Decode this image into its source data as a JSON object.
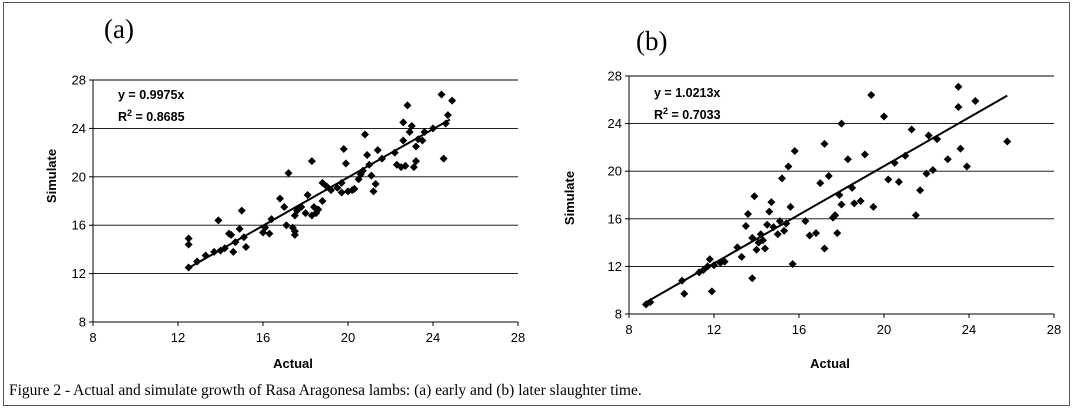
{
  "caption": "Figure 2 - Actual and simulate growth of Rasa Aragonesa lambs: (a) early and (b) later slaughter time.",
  "chart_data": [
    {
      "type": "scatter",
      "panel_label": "(a)",
      "xlabel": "Actual",
      "ylabel": "Simulate",
      "xlim": [
        8,
        28
      ],
      "ylim": [
        8,
        28
      ],
      "xticks": [
        8,
        12,
        16,
        20,
        24,
        28
      ],
      "yticks": [
        8,
        12,
        16,
        20,
        24,
        28
      ],
      "grid": "horizontal",
      "marker": "diamond",
      "equation": "y = 0.9975x",
      "r2_label": "R",
      "r2_sup": "2",
      "r2_value": " = 0.8685",
      "trendline": {
        "slope": 0.9975,
        "x_range": [
          12.5,
          24.8
        ]
      },
      "points": [
        [
          12.5,
          12.5
        ],
        [
          12.5,
          14.9
        ],
        [
          12.5,
          14.4
        ],
        [
          12.9,
          13.0
        ],
        [
          13.3,
          13.5
        ],
        [
          13.7,
          13.8
        ],
        [
          13.9,
          16.4
        ],
        [
          14.0,
          13.9
        ],
        [
          14.2,
          14.1
        ],
        [
          14.4,
          15.3
        ],
        [
          14.5,
          15.2
        ],
        [
          14.6,
          13.8
        ],
        [
          14.7,
          14.6
        ],
        [
          14.9,
          15.7
        ],
        [
          15.0,
          17.2
        ],
        [
          15.1,
          15.0
        ],
        [
          15.2,
          14.2
        ],
        [
          16.0,
          15.4
        ],
        [
          16.1,
          15.8
        ],
        [
          16.3,
          15.3
        ],
        [
          16.4,
          16.5
        ],
        [
          16.8,
          18.2
        ],
        [
          17.0,
          17.5
        ],
        [
          17.1,
          16.0
        ],
        [
          17.2,
          20.3
        ],
        [
          17.4,
          15.8
        ],
        [
          17.5,
          15.5
        ],
        [
          17.5,
          15.2
        ],
        [
          17.5,
          16.8
        ],
        [
          17.6,
          17.2
        ],
        [
          17.8,
          17.5
        ],
        [
          18.0,
          17.0
        ],
        [
          18.1,
          18.5
        ],
        [
          18.3,
          21.3
        ],
        [
          18.3,
          16.8
        ],
        [
          18.4,
          17.5
        ],
        [
          18.5,
          17.0
        ],
        [
          18.6,
          17.3
        ],
        [
          18.8,
          18.0
        ],
        [
          18.8,
          19.5
        ],
        [
          19.0,
          19.2
        ],
        [
          19.2,
          18.9
        ],
        [
          19.5,
          19.1
        ],
        [
          19.7,
          18.7
        ],
        [
          19.7,
          19.5
        ],
        [
          19.8,
          22.3
        ],
        [
          19.9,
          21.1
        ],
        [
          20.0,
          18.8
        ],
        [
          20.2,
          18.9
        ],
        [
          20.3,
          19.0
        ],
        [
          20.5,
          19.8
        ],
        [
          20.6,
          20.2
        ],
        [
          20.7,
          20.5
        ],
        [
          20.8,
          23.5
        ],
        [
          20.9,
          21.8
        ],
        [
          21.0,
          21.0
        ],
        [
          21.1,
          20.1
        ],
        [
          21.2,
          18.8
        ],
        [
          21.3,
          19.4
        ],
        [
          21.4,
          22.2
        ],
        [
          21.6,
          21.5
        ],
        [
          22.2,
          22.0
        ],
        [
          22.3,
          21.0
        ],
        [
          22.5,
          20.8
        ],
        [
          22.6,
          23.0
        ],
        [
          22.6,
          24.5
        ],
        [
          22.7,
          20.9
        ],
        [
          22.8,
          25.9
        ],
        [
          22.9,
          23.7
        ],
        [
          23.0,
          24.2
        ],
        [
          23.1,
          20.8
        ],
        [
          23.2,
          22.5
        ],
        [
          23.2,
          21.3
        ],
        [
          23.3,
          23.1
        ],
        [
          23.5,
          23.0
        ],
        [
          23.6,
          23.7
        ],
        [
          24.0,
          24.0
        ],
        [
          24.4,
          26.8
        ],
        [
          24.5,
          21.5
        ],
        [
          24.6,
          24.4
        ],
        [
          24.7,
          25.1
        ],
        [
          24.9,
          26.3
        ]
      ]
    },
    {
      "type": "scatter",
      "panel_label": "(b)",
      "xlabel": "Actual",
      "ylabel": "Simulate",
      "xlim": [
        8,
        28
      ],
      "ylim": [
        8,
        28
      ],
      "xticks": [
        8,
        12,
        16,
        20,
        24,
        28
      ],
      "yticks": [
        8,
        12,
        16,
        20,
        24,
        28
      ],
      "grid": "horizontal",
      "marker": "diamond",
      "equation": "y = 1.0213x",
      "r2_label": "R",
      "r2_sup": "2",
      "r2_value": " = 0.7033",
      "trendline": {
        "slope": 1.0213,
        "x_range": [
          8.7,
          25.8
        ]
      },
      "points": [
        [
          8.8,
          8.8
        ],
        [
          9.0,
          9.0
        ],
        [
          10.5,
          10.8
        ],
        [
          10.6,
          9.7
        ],
        [
          11.3,
          11.5
        ],
        [
          11.5,
          11.7
        ],
        [
          11.7,
          12.0
        ],
        [
          11.8,
          12.6
        ],
        [
          11.9,
          9.9
        ],
        [
          12.0,
          12.1
        ],
        [
          12.3,
          12.3
        ],
        [
          12.5,
          12.4
        ],
        [
          13.1,
          13.6
        ],
        [
          13.3,
          12.8
        ],
        [
          13.5,
          15.4
        ],
        [
          13.6,
          16.4
        ],
        [
          13.8,
          11.0
        ],
        [
          13.8,
          14.4
        ],
        [
          13.9,
          17.9
        ],
        [
          14.0,
          13.4
        ],
        [
          14.1,
          14.0
        ],
        [
          14.2,
          14.7
        ],
        [
          14.3,
          14.2
        ],
        [
          14.4,
          13.5
        ],
        [
          14.5,
          15.5
        ],
        [
          14.6,
          16.6
        ],
        [
          14.7,
          17.4
        ],
        [
          14.8,
          15.3
        ],
        [
          15.0,
          14.7
        ],
        [
          15.1,
          15.8
        ],
        [
          15.2,
          19.4
        ],
        [
          15.3,
          15.0
        ],
        [
          15.4,
          15.6
        ],
        [
          15.5,
          20.4
        ],
        [
          15.6,
          17.0
        ],
        [
          15.7,
          12.2
        ],
        [
          15.8,
          21.7
        ],
        [
          16.3,
          15.8
        ],
        [
          16.5,
          14.6
        ],
        [
          16.8,
          14.8
        ],
        [
          17.0,
          19.0
        ],
        [
          17.2,
          13.5
        ],
        [
          17.2,
          22.3
        ],
        [
          17.4,
          19.6
        ],
        [
          17.6,
          16.1
        ],
        [
          17.7,
          16.3
        ],
        [
          17.8,
          14.8
        ],
        [
          17.9,
          18.0
        ],
        [
          18.0,
          17.2
        ],
        [
          18.0,
          24.0
        ],
        [
          18.3,
          21.0
        ],
        [
          18.5,
          18.6
        ],
        [
          18.6,
          17.3
        ],
        [
          18.9,
          17.5
        ],
        [
          19.1,
          21.4
        ],
        [
          19.4,
          26.4
        ],
        [
          19.5,
          17.0
        ],
        [
          20.0,
          24.6
        ],
        [
          20.2,
          19.3
        ],
        [
          20.5,
          20.7
        ],
        [
          20.7,
          19.1
        ],
        [
          21.0,
          21.3
        ],
        [
          21.3,
          23.5
        ],
        [
          21.5,
          16.3
        ],
        [
          21.7,
          18.4
        ],
        [
          22.0,
          19.8
        ],
        [
          22.1,
          23.0
        ],
        [
          22.3,
          20.1
        ],
        [
          22.5,
          22.7
        ],
        [
          23.0,
          21.0
        ],
        [
          23.5,
          27.1
        ],
        [
          23.5,
          25.4
        ],
        [
          23.6,
          21.9
        ],
        [
          23.9,
          20.4
        ],
        [
          24.3,
          25.9
        ],
        [
          25.8,
          22.5
        ]
      ]
    }
  ]
}
